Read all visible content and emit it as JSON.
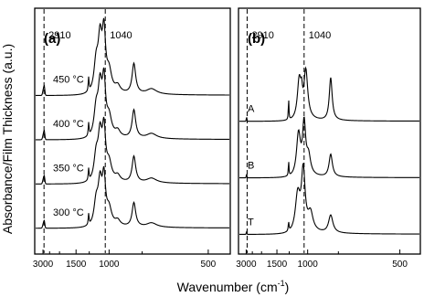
{
  "chart_data": {
    "type": "line",
    "xlabel": "Wavenumber (cm",
    "xlabel_sup": "-1",
    "xlabel_close": ")",
    "ylabel": "Absorbance/Film Thickness (a.u.)",
    "x_axis": {
      "scale": "reciprocal",
      "ticks": [
        "3000",
        "1500",
        "1000",
        "500"
      ],
      "range": [
        4000,
        450
      ]
    },
    "grid": false,
    "legend": "none",
    "panels": [
      {
        "label": "(a)",
        "reference_lines": [
          {
            "x": 2910,
            "label": "2910",
            "style": "dashed"
          },
          {
            "x": 1040,
            "label": "1040",
            "style": "dashed"
          }
        ],
        "series": [
          {
            "name": "450 °C",
            "order_from_top": 1
          },
          {
            "name": "400 °C",
            "order_from_top": 2
          },
          {
            "name": "350 °C",
            "order_from_top": 3
          },
          {
            "name": "300 °C",
            "order_from_top": 4
          }
        ]
      },
      {
        "label": "(b)",
        "reference_lines": [
          {
            "x": 2910,
            "label": "2910",
            "style": "dashed"
          },
          {
            "x": 1040,
            "label": "1040",
            "style": "dashed"
          }
        ],
        "series": [
          {
            "name": "A",
            "order_from_top": 1
          },
          {
            "name": "B",
            "order_from_top": 2
          },
          {
            "name": "T",
            "order_from_top": 3
          }
        ]
      }
    ]
  },
  "colors": {
    "line": "#000000",
    "background": "#ffffff"
  }
}
